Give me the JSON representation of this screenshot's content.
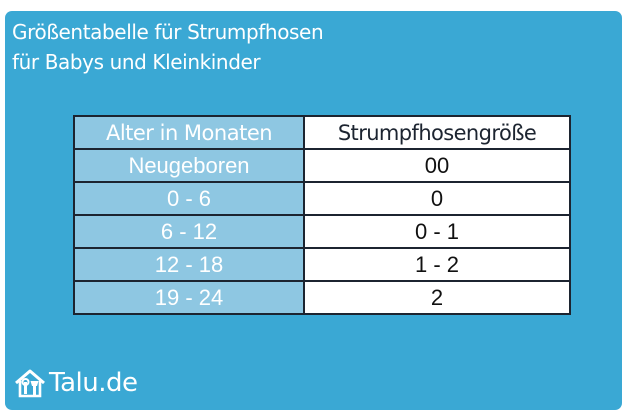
{
  "title": {
    "line1": "Größentabelle für Strumpfhosen",
    "line2": "für Babys und Kleinkinder"
  },
  "table": {
    "headers": [
      "Alter in Monaten",
      "Strumpfhosengröße"
    ],
    "rows": [
      {
        "age": "Neugeboren",
        "size": "00"
      },
      {
        "age": "0 - 6",
        "size": "0"
      },
      {
        "age": "6 - 12",
        "size": "0 - 1"
      },
      {
        "age": "12 - 18",
        "size": "1 - 2"
      },
      {
        "age": "19 - 24",
        "size": "2"
      }
    ]
  },
  "brand": {
    "icon": "house-tools-icon",
    "name": "Talu.de"
  },
  "colors": {
    "background": "#3aa8d4",
    "header_cell": "#8ec7e2",
    "border": "#1c2430"
  }
}
